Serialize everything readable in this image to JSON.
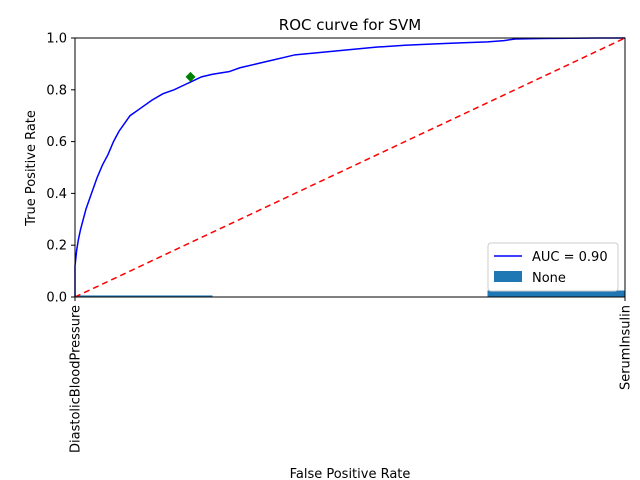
{
  "chart_data": {
    "type": "line",
    "title": "ROC curve for SVM",
    "xlabel": "False Positive Rate",
    "ylabel": "True Positive Rate",
    "xlim": [
      0,
      1
    ],
    "ylim": [
      0,
      1
    ],
    "grid": false,
    "x_tick_labels": [
      "DiastolicBloodPressure",
      "SerumInsulin"
    ],
    "y_ticks": [
      "0.0",
      "0.2",
      "0.4",
      "0.6",
      "0.8",
      "1.0"
    ],
    "legend_placement": "lower-right",
    "series": [
      {
        "name": "AUC = 0.90",
        "kind": "line",
        "color": "#0000ff",
        "x": [
          0.0,
          0.0,
          0.003,
          0.006,
          0.01,
          0.015,
          0.02,
          0.03,
          0.04,
          0.05,
          0.06,
          0.07,
          0.08,
          0.09,
          0.1,
          0.12,
          0.14,
          0.16,
          0.18,
          0.2,
          0.21,
          0.23,
          0.25,
          0.28,
          0.3,
          0.33,
          0.36,
          0.38,
          0.4,
          0.45,
          0.5,
          0.55,
          0.6,
          0.65,
          0.7,
          0.75,
          0.78,
          0.8,
          0.85,
          0.9,
          0.95,
          1.0
        ],
        "y": [
          0.0,
          0.12,
          0.18,
          0.22,
          0.26,
          0.3,
          0.34,
          0.4,
          0.46,
          0.51,
          0.55,
          0.6,
          0.64,
          0.67,
          0.7,
          0.73,
          0.76,
          0.785,
          0.8,
          0.82,
          0.83,
          0.85,
          0.86,
          0.87,
          0.885,
          0.9,
          0.915,
          0.925,
          0.935,
          0.945,
          0.955,
          0.965,
          0.972,
          0.977,
          0.981,
          0.985,
          0.99,
          0.996,
          0.998,
          0.999,
          1.0,
          1.0
        ]
      },
      {
        "name": "",
        "kind": "dashed-line",
        "color": "#ff0000",
        "x": [
          0,
          1
        ],
        "y": [
          0,
          1
        ]
      },
      {
        "name": "",
        "kind": "marker",
        "color": "#008000",
        "x": [
          0.21
        ],
        "y": [
          0.85
        ]
      },
      {
        "name": "None",
        "kind": "bar",
        "color": "#1f77b4",
        "bars": [
          {
            "x0": 0.0,
            "x1": 0.25,
            "value": 0.006
          },
          {
            "x0": 0.75,
            "x1": 1.0,
            "value": 0.025
          }
        ]
      }
    ]
  }
}
